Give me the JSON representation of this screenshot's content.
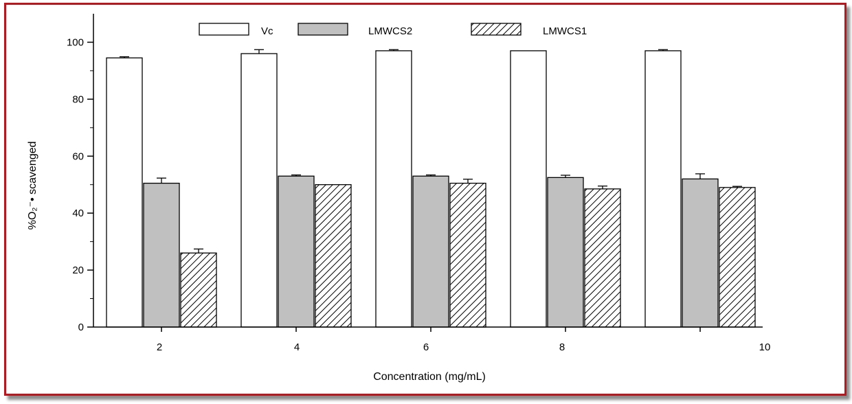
{
  "chart_data": {
    "type": "bar",
    "categories": [
      "2",
      "4",
      "6",
      "8",
      "10"
    ],
    "series": [
      {
        "name": "Vc",
        "values": [
          94.5,
          96,
          97,
          97,
          97
        ],
        "errors": [
          0.4,
          1.4,
          0.4,
          0,
          0.4
        ],
        "color": "#ffffff",
        "pattern": "none"
      },
      {
        "name": "LMWCS2",
        "values": [
          50.5,
          53,
          53,
          52.5,
          52
        ],
        "errors": [
          1.8,
          0.4,
          0.4,
          0.8,
          1.8
        ],
        "color": "#c0c0c0",
        "pattern": "none"
      },
      {
        "name": "LMWCS1",
        "values": [
          26,
          50,
          50.5,
          48.5,
          49
        ],
        "errors": [
          1.4,
          0,
          1.4,
          1.0,
          0.4
        ],
        "color": "#ffffff",
        "pattern": "diagonal-hatch"
      }
    ],
    "xlabel": "Concentration (mg/mL)",
    "ylabel": "%O₂⁻• scavenged",
    "ylim": [
      0,
      110
    ],
    "yticks": [
      0,
      20,
      40,
      60,
      80,
      100
    ],
    "grid": false,
    "legend_position": "top"
  }
}
